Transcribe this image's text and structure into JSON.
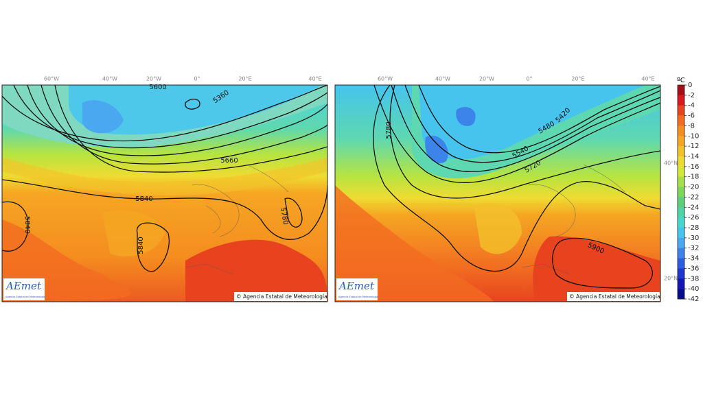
{
  "maps": [
    {
      "lon_labels": [
        "60°W",
        "40°W",
        "20°W",
        "0°",
        "20°E",
        "40°E"
      ],
      "contour_labels": [
        "5600",
        "5360",
        "5660",
        "5840",
        "5840",
        "5840",
        "5780"
      ],
      "logo": "AEmet",
      "logo_sub": "Agencia Estatal de Meteorología",
      "credit": "© Agencia Estatal de Meteorología"
    },
    {
      "lon_labels": [
        "60°W",
        "40°W",
        "20°W",
        "0°",
        "20°E",
        "40°E"
      ],
      "lat_labels": [
        "40°N",
        "20°N"
      ],
      "contour_labels": [
        "5780",
        "5540",
        "5480",
        "5420",
        "5720",
        "5900"
      ],
      "logo": "AEmet",
      "logo_sub": "Agencia Estatal de Meteorología",
      "credit": "© Agencia Estatal de Meteorología"
    }
  ],
  "colorbar": {
    "unit": "ºC",
    "ticks": [
      0,
      -2,
      -4,
      -6,
      -8,
      -10,
      -12,
      -14,
      -16,
      -18,
      -20,
      -22,
      -24,
      -26,
      -28,
      -30,
      -32,
      -34,
      -36,
      -38,
      -40,
      -42
    ],
    "colors": [
      "#a50f15",
      "#d7191c",
      "#e8431f",
      "#f26b21",
      "#f58c1f",
      "#f5a623",
      "#f3c12a",
      "#eedc32",
      "#d3e838",
      "#a8e048",
      "#80d858",
      "#5ecf78",
      "#4ed4a8",
      "#46d8d0",
      "#46c4ee",
      "#4aa8f0",
      "#3c84ea",
      "#2c5ce0",
      "#1e36d0",
      "#1218b4",
      "#0a0a8c"
    ]
  }
}
